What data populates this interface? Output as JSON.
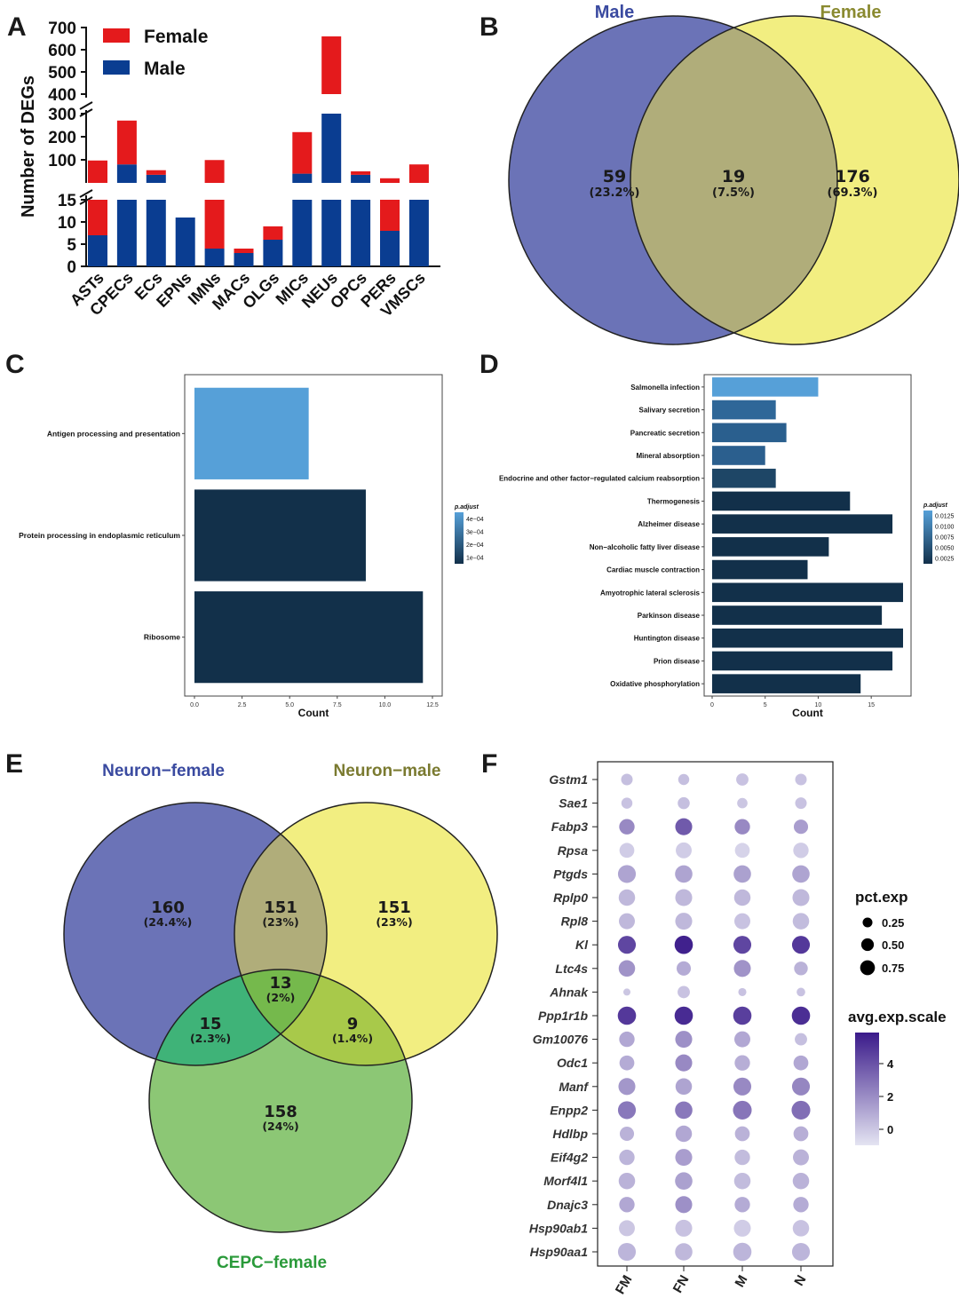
{
  "panel_labels": [
    "A",
    "B",
    "C",
    "D",
    "E",
    "F"
  ],
  "chart_data": [
    {
      "panel": "A",
      "type": "bar",
      "stacked": true,
      "broken_axis": true,
      "ylabel": "Number of DEGs",
      "categories": [
        "ASTs",
        "CPECs",
        "ECs",
        "EPNs",
        "IMNs",
        "MACs",
        "OLGs",
        "MICs",
        "NEUs",
        "OPCs",
        "PERs",
        "VMSCs"
      ],
      "series": [
        {
          "name": "Male",
          "color": "#0a3d91",
          "values": [
            7,
            80,
            35,
            11,
            4,
            3,
            6,
            40,
            300,
            35,
            8,
            15
          ]
        },
        {
          "name": "Female",
          "color": "#e41a1c",
          "values": [
            90,
            190,
            20,
            0,
            95,
            1,
            3,
            180,
            360,
            15,
            12,
            65
          ]
        }
      ],
      "yticks_low": [
        "0",
        "5",
        "10",
        "15"
      ],
      "yticks_mid": [
        "100",
        "200",
        "300"
      ],
      "yticks_high": [
        "400",
        "500",
        "600",
        "700"
      ],
      "legend_position": "top-left"
    },
    {
      "panel": "B",
      "type": "venn",
      "sets": [
        {
          "name": "Male",
          "color": "#6b73b7",
          "label_color": "#3a4aa0"
        },
        {
          "name": "Female",
          "color": "#f2ee81",
          "label_color": "#8a8a30"
        }
      ],
      "overlap_color": "#b0ad7a",
      "regions": [
        {
          "count": "59",
          "pct": "(23.2%)"
        },
        {
          "count": "19",
          "pct": "(7.5%)"
        },
        {
          "count": "176",
          "pct": "(69.3%)"
        }
      ]
    },
    {
      "panel": "C",
      "type": "bar",
      "orientation": "horizontal",
      "categories": [
        "Antigen processing and presentation",
        "Protein processing in endoplasmic reticulum",
        "Ribosome"
      ],
      "values": [
        6,
        9,
        12
      ],
      "colors": [
        "#56a0d8",
        "#12304a",
        "#12304a"
      ],
      "xlabel": "Count",
      "xticks": [
        "0.0",
        "2.5",
        "5.0",
        "7.5",
        "10.0",
        "12.5"
      ],
      "xlim": [
        0,
        12.5
      ],
      "legend_title": "p.adjust",
      "legend_ticks": [
        "4e−04",
        "3e−04",
        "2e−04",
        "1e−04"
      ]
    },
    {
      "panel": "D",
      "type": "bar",
      "orientation": "horizontal",
      "categories": [
        "Salmonella infection",
        "Salivary secretion",
        "Pancreatic secretion",
        "Mineral absorption",
        "Endocrine and other factor−regulated calcium reabsorption",
        "Thermogenesis",
        "Alzheimer disease",
        "Non−alcoholic fatty liver disease",
        "Cardiac muscle contraction",
        "Amyotrophic lateral sclerosis",
        "Parkinson disease",
        "Huntington disease",
        "Prion disease",
        "Oxidative phosphorylation"
      ],
      "values": [
        10,
        6,
        7,
        5,
        6,
        13,
        17,
        11,
        9,
        18,
        16,
        18,
        17,
        14
      ],
      "colors": [
        "#56a0d8",
        "#2f6798",
        "#2a5f8e",
        "#2b5f8e",
        "#1e4666",
        "#12304a",
        "#12304a",
        "#12304a",
        "#12304a",
        "#12304a",
        "#12304a",
        "#12304a",
        "#12304a",
        "#12304a"
      ],
      "xlabel": "Count",
      "xticks": [
        "0",
        "5",
        "10",
        "15"
      ],
      "xlim": [
        0,
        18
      ],
      "legend_title": "p.adjust",
      "legend_ticks": [
        "0.0125",
        "0.0100",
        "0.0075",
        "0.0050",
        "0.0025"
      ]
    },
    {
      "panel": "E",
      "type": "venn",
      "sets": [
        {
          "name": "Neuron−female",
          "color": "#6b73b7",
          "label_color": "#3a4aa0"
        },
        {
          "name": "Neuron−male",
          "color": "#f2ee81",
          "label_color": "#7a7a30"
        },
        {
          "name": "CEPC−female",
          "color": "#8cc775",
          "label_color": "#2a9a3a"
        }
      ],
      "regions": [
        {
          "count": "160",
          "pct": "(24.4%)"
        },
        {
          "count": "151",
          "pct": "(23%)"
        },
        {
          "count": "151",
          "pct": "(23%)"
        },
        {
          "count": "13",
          "pct": "(2%)"
        },
        {
          "count": "15",
          "pct": "(2.3%)"
        },
        {
          "count": "9",
          "pct": "(1.4%)"
        },
        {
          "count": "158",
          "pct": "(24%)"
        }
      ]
    },
    {
      "panel": "F",
      "type": "dotplot",
      "genes": [
        "Gstm1",
        "Sae1",
        "Fabp3",
        "Rpsa",
        "Ptgds",
        "Rplp0",
        "Rpl8",
        "Kl",
        "Ltc4s",
        "Ahnak",
        "Ppp1r1b",
        "Gm10076",
        "Odc1",
        "Manf",
        "Enpp2",
        "Hdlbp",
        "Eif4g2",
        "Morf4l1",
        "Dnajc3",
        "Hsp90ab1",
        "Hsp90aa1"
      ],
      "groups": [
        "FM",
        "FN",
        "M",
        "N"
      ],
      "pct_exp": [
        [
          0.25,
          0.22,
          0.3,
          0.25
        ],
        [
          0.22,
          0.28,
          0.18,
          0.25
        ],
        [
          0.55,
          0.7,
          0.55,
          0.45
        ],
        [
          0.5,
          0.6,
          0.5,
          0.55
        ],
        [
          0.8,
          0.75,
          0.75,
          0.75
        ],
        [
          0.65,
          0.7,
          0.65,
          0.7
        ],
        [
          0.6,
          0.7,
          0.6,
          0.65
        ],
        [
          0.8,
          0.85,
          0.8,
          0.8
        ],
        [
          0.65,
          0.45,
          0.7,
          0.4
        ],
        [
          0.05,
          0.3,
          0.08,
          0.1
        ],
        [
          0.85,
          0.85,
          0.85,
          0.85
        ],
        [
          0.55,
          0.7,
          0.6,
          0.3
        ],
        [
          0.5,
          0.7,
          0.55,
          0.5
        ],
        [
          0.7,
          0.65,
          0.8,
          0.8
        ],
        [
          0.8,
          0.75,
          0.9,
          0.9
        ],
        [
          0.45,
          0.65,
          0.5,
          0.5
        ],
        [
          0.55,
          0.7,
          0.55,
          0.6
        ],
        [
          0.65,
          0.75,
          0.65,
          0.65
        ],
        [
          0.55,
          0.7,
          0.55,
          0.55
        ],
        [
          0.6,
          0.7,
          0.7,
          0.65
        ],
        [
          0.8,
          0.75,
          0.85,
          0.8
        ]
      ],
      "avg_exp_scale": [
        [
          0.6,
          0.6,
          0.5,
          0.5
        ],
        [
          0.5,
          0.6,
          0.4,
          0.5
        ],
        [
          2.2,
          3.6,
          2.2,
          1.6
        ],
        [
          0.2,
          0.2,
          0.0,
          0.2
        ],
        [
          1.4,
          1.4,
          1.5,
          1.4
        ],
        [
          0.8,
          0.8,
          0.8,
          0.8
        ],
        [
          0.8,
          0.8,
          0.5,
          0.7
        ],
        [
          4.2,
          5.3,
          4.2,
          4.6
        ],
        [
          1.9,
          1.2,
          1.9,
          1.0
        ],
        [
          0.4,
          0.5,
          0.5,
          0.5
        ],
        [
          4.6,
          5.0,
          4.4,
          4.9
        ],
        [
          1.3,
          2.0,
          1.3,
          0.6
        ],
        [
          1.2,
          2.2,
          1.1,
          1.3
        ],
        [
          1.8,
          1.4,
          2.2,
          2.3
        ],
        [
          2.7,
          2.7,
          2.8,
          3.0
        ],
        [
          1.0,
          1.3,
          1.0,
          1.1
        ],
        [
          0.9,
          1.6,
          0.7,
          1.0
        ],
        [
          1.0,
          1.5,
          0.7,
          1.0
        ],
        [
          1.3,
          2.0,
          1.2,
          1.2
        ],
        [
          0.4,
          0.5,
          0.2,
          0.5
        ],
        [
          0.9,
          0.8,
          0.9,
          0.9
        ]
      ],
      "size_legend_title": "pct.exp",
      "size_legend": [
        0.25,
        0.5,
        0.75
      ],
      "size_legend_labels": [
        "0.25",
        "0.50",
        "0.75"
      ],
      "color_legend_title": "avg.exp.scale",
      "color_legend_ticks": [
        "4",
        "2",
        "0"
      ],
      "color_range": [
        "#e4e4f2",
        "#3a1a8a"
      ]
    }
  ]
}
